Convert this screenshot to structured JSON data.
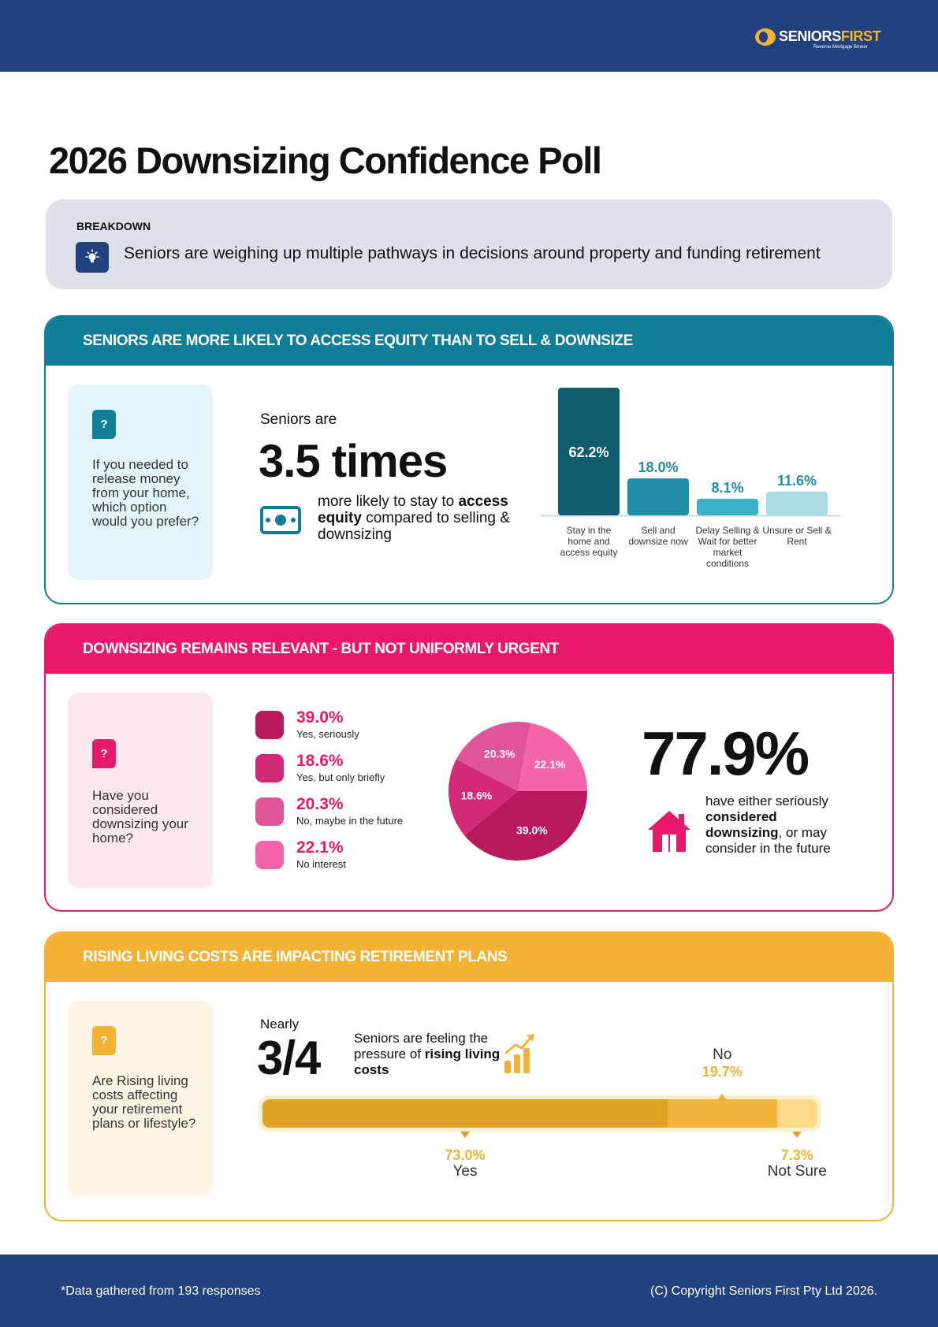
{
  "brand": {
    "name_part1": "SENIORS",
    "name_part2": "FIRST",
    "tagline": "Reverse Mortgage Broker"
  },
  "page_title": "2026 Downsizing Confidence Poll",
  "breakdown": {
    "label": "BREAKDOWN",
    "icon": "lightbulb-icon",
    "text": "Seniors are weighing up multiple pathways in decisions around property and funding retirement"
  },
  "section1": {
    "heading": "SENIORS ARE MORE LIKELY TO ACCESS EQUITY THAN TO SELL & DOWNSIZE",
    "color": "#0f7f98",
    "question": "If you needed to release money from your home, which option would you prefer?",
    "lead": "Seniors are",
    "stat": "3.5 times",
    "desc_pre": "more likely to stay to",
    "desc_bold": "access equity",
    "desc_post": "compared to selling & downsizing",
    "icon": "money-icon",
    "chart_data": {
      "type": "bar",
      "categories": [
        "Stay in the home and access equity",
        "Sell and downsize now",
        "Delay Selling & Wait for better market conditions",
        "Unsure or Sell & Rent"
      ],
      "values": [
        62.2,
        18.0,
        8.1,
        11.6
      ],
      "value_labels": [
        "62.2%",
        "18.0%",
        "8.1%",
        "11.6%"
      ],
      "colors": [
        "#0f5e70",
        "#1f8fa6",
        "#3bb2c9",
        "#a9dce5"
      ],
      "ylim": [
        0,
        62.2
      ]
    }
  },
  "section2": {
    "heading": "DOWNSIZING REMAINS RELEVANT - BUT NOT UNIFORMLY URGENT",
    "color": "#e8196b",
    "question": "Have you considered downsizing your home?",
    "stat": "77.9%",
    "desc_pre": "have either seriously",
    "desc_bold": "considered downsizing",
    "desc_post": ", or may consider in the future",
    "icon": "house-icon",
    "chart_data": {
      "type": "pie",
      "categories": [
        "Yes, seriously",
        "Yes, but only briefly",
        "No, maybe in the future",
        "No interest"
      ],
      "values": [
        39.0,
        18.6,
        20.3,
        22.1
      ],
      "value_labels": [
        "39.0%",
        "18.6%",
        "20.3%",
        "22.1%"
      ],
      "colors": [
        "#b8185e",
        "#d42a75",
        "#e05499",
        "#f464a9"
      ]
    }
  },
  "section3": {
    "heading": "RISING LIVING COSTS ARE IMPACTING RETIREMENT PLANS",
    "color": "#f3b233",
    "question": "Are Rising living costs affecting your retirement plans or lifestyle?",
    "lead": "Nearly",
    "stat": "3/4",
    "desc_pre": "Seniors are feeling the pressure of",
    "desc_bold": "rising living costs",
    "icon": "rising-chart-icon",
    "chart_data": {
      "type": "bar",
      "orientation": "stacked-horizontal",
      "categories": [
        "Yes",
        "No",
        "Not Sure"
      ],
      "values": [
        73.0,
        19.7,
        7.3
      ],
      "value_labels": [
        "73.0%",
        "19.7%",
        "7.3%"
      ],
      "colors": [
        "#e0a324",
        "#f3b43a",
        "#fcd98b"
      ]
    }
  },
  "footer": {
    "note": "*Data gathered from 193 responses",
    "copyright": "(C) Copyright Seniors First Pty Ltd 2026."
  }
}
